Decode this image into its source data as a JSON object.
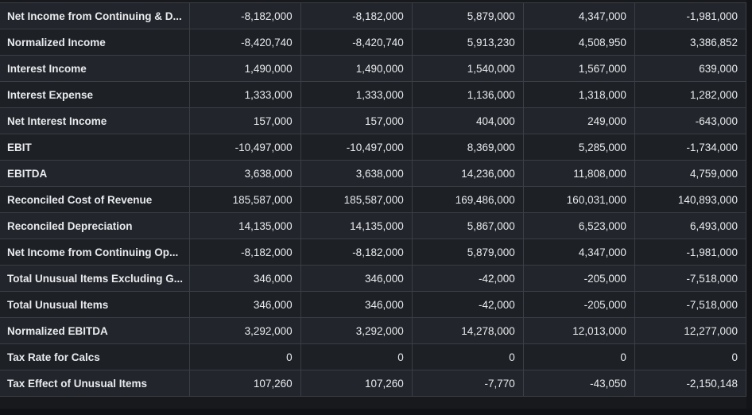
{
  "table": {
    "rows": [
      {
        "label": "Net Income from Continuing & D...",
        "values": [
          "-8,182,000",
          "-8,182,000",
          "5,879,000",
          "4,347,000",
          "-1,981,000"
        ]
      },
      {
        "label": "Normalized Income",
        "values": [
          "-8,420,740",
          "-8,420,740",
          "5,913,230",
          "4,508,950",
          "3,386,852"
        ]
      },
      {
        "label": "Interest Income",
        "values": [
          "1,490,000",
          "1,490,000",
          "1,540,000",
          "1,567,000",
          "639,000"
        ]
      },
      {
        "label": "Interest Expense",
        "values": [
          "1,333,000",
          "1,333,000",
          "1,136,000",
          "1,318,000",
          "1,282,000"
        ]
      },
      {
        "label": "Net Interest Income",
        "values": [
          "157,000",
          "157,000",
          "404,000",
          "249,000",
          "-643,000"
        ]
      },
      {
        "label": "EBIT",
        "values": [
          "-10,497,000",
          "-10,497,000",
          "8,369,000",
          "5,285,000",
          "-1,734,000"
        ]
      },
      {
        "label": "EBITDA",
        "values": [
          "3,638,000",
          "3,638,000",
          "14,236,000",
          "11,808,000",
          "4,759,000"
        ]
      },
      {
        "label": "Reconciled Cost of Revenue",
        "values": [
          "185,587,000",
          "185,587,000",
          "169,486,000",
          "160,031,000",
          "140,893,000"
        ]
      },
      {
        "label": "Reconciled Depreciation",
        "values": [
          "14,135,000",
          "14,135,000",
          "5,867,000",
          "6,523,000",
          "6,493,000"
        ]
      },
      {
        "label": "Net Income from Continuing Op...",
        "values": [
          "-8,182,000",
          "-8,182,000",
          "5,879,000",
          "4,347,000",
          "-1,981,000"
        ]
      },
      {
        "label": "Total Unusual Items Excluding G...",
        "values": [
          "346,000",
          "346,000",
          "-42,000",
          "-205,000",
          "-7,518,000"
        ]
      },
      {
        "label": "Total Unusual Items",
        "values": [
          "346,000",
          "346,000",
          "-42,000",
          "-205,000",
          "-7,518,000"
        ]
      },
      {
        "label": "Normalized EBITDA",
        "values": [
          "3,292,000",
          "3,292,000",
          "14,278,000",
          "12,013,000",
          "12,277,000"
        ]
      },
      {
        "label": "Tax Rate for Calcs",
        "values": [
          "0",
          "0",
          "0",
          "0",
          "0"
        ]
      },
      {
        "label": "Tax Effect of Unusual Items",
        "values": [
          "107,260",
          "107,260",
          "-7,770",
          "-43,050",
          "-2,150,148"
        ]
      }
    ]
  },
  "colors": {
    "background": "#17191d",
    "row_odd": "#22252b",
    "row_even": "#1d2025",
    "grid": "#3a3e45",
    "text": "#e9ebee"
  }
}
